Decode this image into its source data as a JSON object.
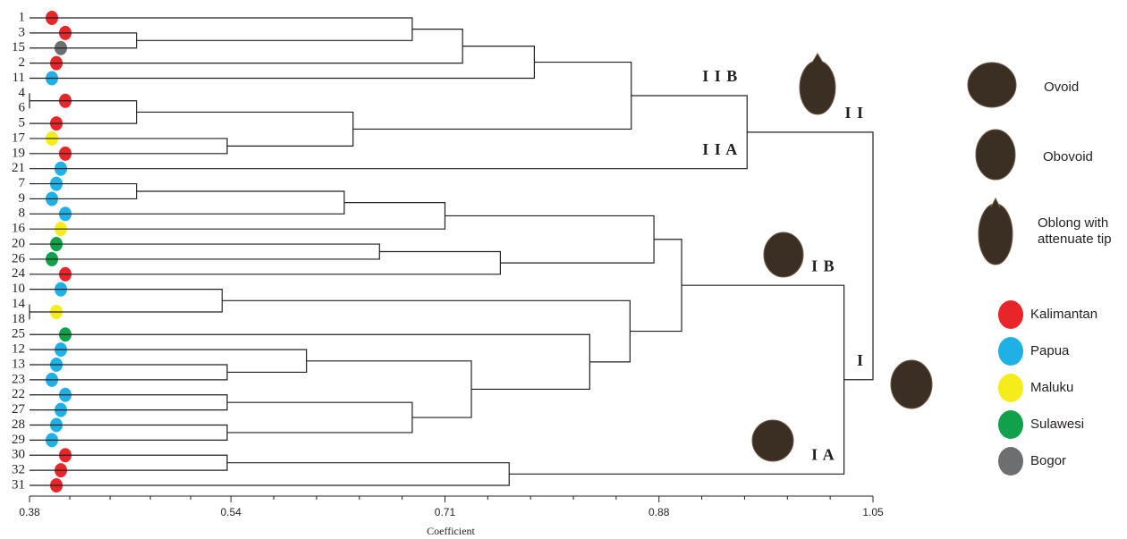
{
  "chart_data": {
    "type": "dendrogram",
    "x_label": "Coefficient",
    "xlim": [
      0.38,
      1.05
    ],
    "xticks": [
      0.38,
      0.54,
      0.71,
      0.88,
      1.05
    ],
    "line_color": "#231f20",
    "regions": [
      {
        "name": "Kalimantan",
        "color": "#e8262a"
      },
      {
        "name": "Papua",
        "color": "#1fb0e6"
      },
      {
        "name": "Maluku",
        "color": "#f5ec1c"
      },
      {
        "name": "Sulawesi",
        "color": "#10a14a"
      },
      {
        "name": "Bogor",
        "color": "#6d6e70"
      }
    ],
    "shapes": [
      "Ovoid",
      "Obovoid",
      "Oblong with attenuate tip"
    ],
    "tree": {
      "height": 1.05,
      "children": [
        {
          "height": 0.95,
          "cluster_label": "I I",
          "children": [
            {
              "height": 0.858,
              "cluster_label": "I I B",
              "children": [
                {
                  "height": 0.781,
                  "children": [
                    {
                      "height": 0.724,
                      "children": [
                        {
                          "height": 0.684,
                          "children": [
                            {
                              "name": "1",
                              "region": "Kalimantan"
                            },
                            {
                              "height": 0.465,
                              "children": [
                                {
                                  "name": "3",
                                  "region": "Kalimantan"
                                },
                                {
                                  "name": "15",
                                  "region": "Bogor"
                                }
                              ]
                            }
                          ]
                        },
                        {
                          "name": "2",
                          "region": "Kalimantan"
                        }
                      ]
                    },
                    {
                      "name": "11",
                      "region": "Papua"
                    }
                  ]
                },
                {
                  "height": 0.637,
                  "children": [
                    {
                      "height": 0.465,
                      "children": [
                        {
                          "height": 0.38,
                          "children": [
                            {
                              "name": "4",
                              "region": "Kalimantan"
                            },
                            {
                              "name": "6",
                              "region": "Kalimantan"
                            }
                          ]
                        },
                        {
                          "name": "5",
                          "region": "Kalimantan"
                        }
                      ]
                    },
                    {
                      "height": 0.537,
                      "children": [
                        {
                          "name": "17",
                          "region": "Maluku"
                        },
                        {
                          "name": "19",
                          "region": "Kalimantan"
                        }
                      ]
                    }
                  ]
                }
              ]
            },
            {
              "name": "21",
              "region": "Papua",
              "cluster_label": "I I A"
            }
          ]
        },
        {
          "height": 1.027,
          "cluster_label": "I",
          "children": [
            {
              "height": 0.898,
              "cluster_label": "I B",
              "children": [
                {
                  "height": 0.876,
                  "children": [
                    {
                      "height": 0.71,
                      "children": [
                        {
                          "height": 0.63,
                          "children": [
                            {
                              "height": 0.465,
                              "children": [
                                {
                                  "name": "7",
                                  "region": "Papua"
                                },
                                {
                                  "name": "9",
                                  "region": "Papua"
                                }
                              ]
                            },
                            {
                              "name": "8",
                              "region": "Papua"
                            }
                          ]
                        },
                        {
                          "name": "16",
                          "region": "Maluku"
                        }
                      ]
                    },
                    {
                      "height": 0.754,
                      "children": [
                        {
                          "height": 0.658,
                          "children": [
                            {
                              "name": "20",
                              "region": "Sulawesi"
                            },
                            {
                              "name": "26",
                              "region": "Sulawesi"
                            }
                          ]
                        },
                        {
                          "name": "24",
                          "region": "Kalimantan"
                        }
                      ]
                    }
                  ]
                },
                {
                  "height": 0.857,
                  "children": [
                    {
                      "height": 0.533,
                      "children": [
                        {
                          "name": "10",
                          "region": "Papua"
                        },
                        {
                          "height": 0.38,
                          "children": [
                            {
                              "name": "14",
                              "region": "Maluku"
                            },
                            {
                              "name": "18",
                              "region": "Maluku"
                            }
                          ]
                        }
                      ]
                    },
                    {
                      "height": 0.825,
                      "children": [
                        {
                          "name": "25",
                          "region": "Sulawesi"
                        },
                        {
                          "height": 0.731,
                          "children": [
                            {
                              "height": 0.6,
                              "children": [
                                {
                                  "name": "12",
                                  "region": "Papua"
                                },
                                {
                                  "height": 0.537,
                                  "children": [
                                    {
                                      "name": "13",
                                      "region": "Papua"
                                    },
                                    {
                                      "name": "23",
                                      "region": "Papua"
                                    }
                                  ]
                                }
                              ]
                            },
                            {
                              "height": 0.684,
                              "children": [
                                {
                                  "height": 0.537,
                                  "children": [
                                    {
                                      "name": "22",
                                      "region": "Papua"
                                    },
                                    {
                                      "name": "27",
                                      "region": "Papua"
                                    }
                                  ]
                                },
                                {
                                  "height": 0.537,
                                  "children": [
                                    {
                                      "name": "28",
                                      "region": "Papua"
                                    },
                                    {
                                      "name": "29",
                                      "region": "Papua"
                                    }
                                  ]
                                }
                              ]
                            }
                          ]
                        }
                      ]
                    }
                  ]
                }
              ]
            },
            {
              "height": 0.761,
              "cluster_label": "I A",
              "children": [
                {
                  "height": 0.537,
                  "children": [
                    {
                      "name": "30",
                      "region": "Kalimantan"
                    },
                    {
                      "name": "32",
                      "region": "Kalimantan"
                    }
                  ]
                },
                {
                  "name": "31",
                  "region": "Kalimantan"
                }
              ]
            }
          ]
        }
      ]
    }
  }
}
